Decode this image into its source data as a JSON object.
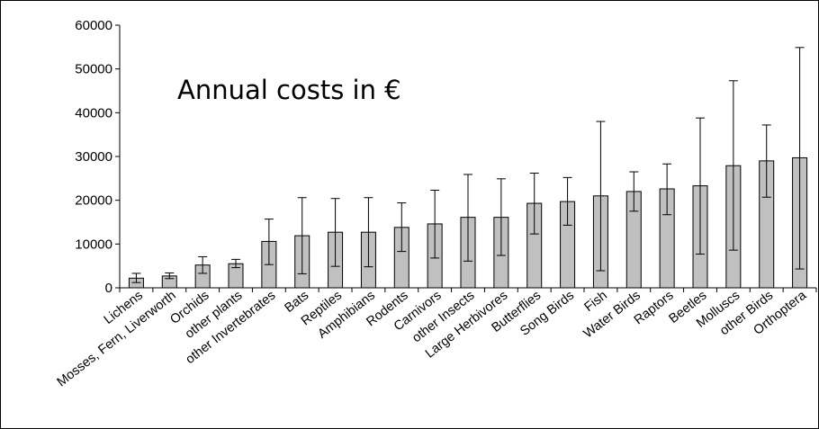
{
  "chart_data": {
    "type": "bar",
    "title": "",
    "xlabel": "",
    "ylabel": "",
    "annotation": "Annual costs in €",
    "ylim": [
      0,
      60000
    ],
    "yticks": [
      0,
      10000,
      20000,
      30000,
      40000,
      50000,
      60000
    ],
    "grid": false,
    "legend": "none",
    "colors": {
      "bar_fill": "#c0c0c0",
      "bar_stroke": "#000000",
      "axis": "#000000"
    },
    "categories": [
      "Lichens",
      "Mosses, Fern, Liverworth",
      "Orchids",
      "other plants",
      "other Invertebrates",
      "Bats",
      "Reptiles",
      "Amphibians",
      "Rodents",
      "Carnivors",
      "other Insects",
      "Large Herbivores",
      "Butterflies",
      "Song Birds",
      "Fish",
      "Water Birds",
      "Raptors",
      "Beetles",
      "Molluscs",
      "other Birds",
      "Orthoptera"
    ],
    "values": [
      2200,
      2700,
      5200,
      5500,
      10600,
      11900,
      12700,
      12700,
      13800,
      14600,
      16100,
      16100,
      19300,
      19700,
      21000,
      22000,
      22600,
      23300,
      27900,
      29000,
      29700
    ],
    "error_low": [
      1200,
      2100,
      3300,
      4600,
      5300,
      3200,
      4900,
      4800,
      8300,
      6800,
      6100,
      7400,
      12300,
      14300,
      3900,
      17500,
      16700,
      7700,
      8600,
      20700,
      4300
    ],
    "error_high": [
      3300,
      3400,
      7100,
      6500,
      15700,
      20600,
      20400,
      20600,
      19400,
      22300,
      25900,
      24900,
      26200,
      25200,
      38000,
      26500,
      28300,
      38800,
      47300,
      37200,
      54900
    ]
  }
}
